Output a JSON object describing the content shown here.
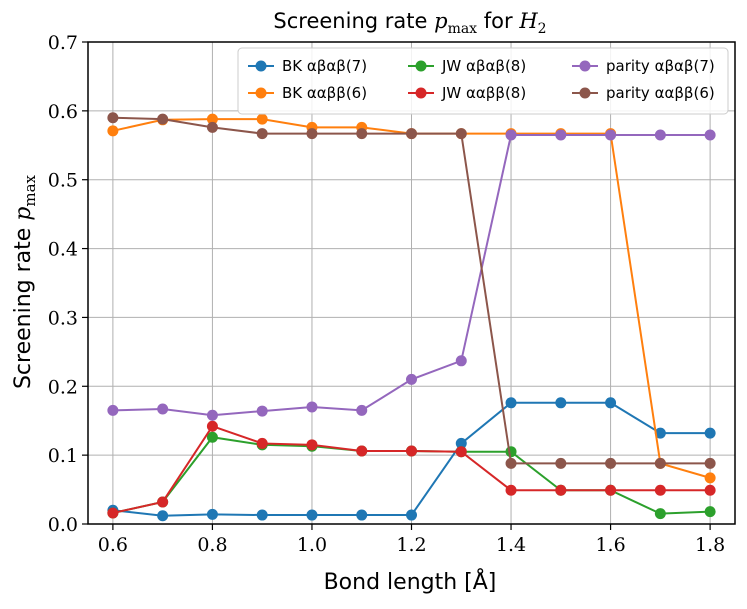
{
  "chart_data": {
    "type": "line",
    "title": "Screening rate p_max for H_2",
    "title_parts": {
      "prefix": "Screening rate ",
      "var": "p",
      "sub": "max",
      "mid": " for ",
      "mol": "H",
      "mol_sub": "2"
    },
    "xlabel": "Bond length [Å]",
    "ylabel_parts": {
      "prefix": "Screening rate ",
      "var": "p",
      "sub": "max"
    },
    "xlim": [
      0.55,
      1.85
    ],
    "ylim": [
      0.0,
      0.7
    ],
    "xticks": [
      0.6,
      0.8,
      1.0,
      1.2,
      1.4,
      1.6,
      1.8
    ],
    "xtick_labels": [
      "0.6",
      "0.8",
      "1.0",
      "1.2",
      "1.4",
      "1.6",
      "1.8"
    ],
    "yticks": [
      0.0,
      0.1,
      0.2,
      0.3,
      0.4,
      0.5,
      0.6,
      0.7
    ],
    "ytick_labels": [
      "0.0",
      "0.1",
      "0.2",
      "0.3",
      "0.4",
      "0.5",
      "0.6",
      "0.7"
    ],
    "grid": true,
    "legend_position": "top-right",
    "x": [
      0.6,
      0.7,
      0.8,
      0.9,
      1.0,
      1.1,
      1.2,
      1.3,
      1.4,
      1.5,
      1.6,
      1.7,
      1.8
    ],
    "series": [
      {
        "name": "BK αβαβ(7)",
        "color": "#1f77b4",
        "values": [
          0.02,
          0.012,
          0.014,
          0.013,
          0.013,
          0.013,
          0.013,
          0.117,
          0.176,
          0.176,
          0.176,
          0.132,
          0.132
        ]
      },
      {
        "name": "BK ααββ(6)",
        "color": "#ff7f0e",
        "values": [
          0.571,
          0.587,
          0.588,
          0.588,
          0.576,
          0.576,
          0.567,
          0.567,
          0.567,
          0.567,
          0.567,
          0.088,
          0.067
        ]
      },
      {
        "name": "JW αβαβ(8)",
        "color": "#2ca02c",
        "values": [
          0.016,
          0.032,
          0.126,
          0.115,
          0.113,
          0.106,
          0.106,
          0.105,
          0.105,
          0.049,
          0.049,
          0.015,
          0.018
        ]
      },
      {
        "name": "JW ααββ(8)",
        "color": "#d62728",
        "values": [
          0.016,
          0.032,
          0.142,
          0.117,
          0.115,
          0.106,
          0.106,
          0.105,
          0.049,
          0.049,
          0.049,
          0.049,
          0.049
        ]
      },
      {
        "name": "parity αβαβ(7)",
        "color": "#9467bd",
        "values": [
          0.165,
          0.167,
          0.158,
          0.164,
          0.17,
          0.165,
          0.21,
          0.237,
          0.565,
          0.565,
          0.565,
          0.565,
          0.565
        ]
      },
      {
        "name": "parity ααββ(6)",
        "color": "#8c564b",
        "values": [
          0.59,
          0.588,
          0.576,
          0.567,
          0.567,
          0.567,
          0.567,
          0.567,
          0.088,
          0.088,
          0.088,
          0.088,
          0.088
        ]
      }
    ]
  }
}
